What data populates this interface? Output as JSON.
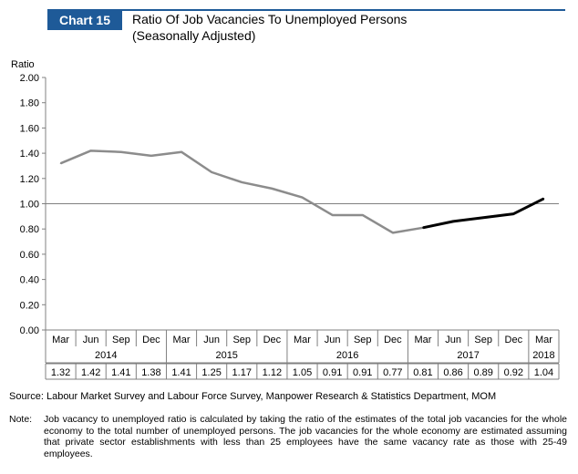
{
  "header": {
    "badge": "Chart 15",
    "title_line1": "Ratio Of Job Vacancies To Unemployed Persons",
    "title_line2": "(Seasonally Adjusted)"
  },
  "colors": {
    "brand": "#1e5a98",
    "series_main": "#8c8c8c",
    "series_highlight": "#000000",
    "reference_line": "#808080"
  },
  "chart_data": {
    "type": "line",
    "ylabel": "Ratio",
    "ylim": [
      0,
      2
    ],
    "yticks": [
      "0.00",
      "0.20",
      "0.40",
      "0.60",
      "0.80",
      "1.00",
      "1.20",
      "1.40",
      "1.60",
      "1.80",
      "2.00"
    ],
    "reference_line": 1.0,
    "categories": [
      "Mar",
      "Jun",
      "Sep",
      "Dec",
      "Mar",
      "Jun",
      "Sep",
      "Dec",
      "Mar",
      "Jun",
      "Sep",
      "Dec",
      "Mar",
      "Jun",
      "Sep",
      "Dec",
      "Mar"
    ],
    "years": [
      {
        "label": "2014",
        "span": 4
      },
      {
        "label": "2015",
        "span": 4
      },
      {
        "label": "2016",
        "span": 4
      },
      {
        "label": "2017",
        "span": 4
      },
      {
        "label": "2018",
        "span": 1
      }
    ],
    "values": [
      1.32,
      1.42,
      1.41,
      1.38,
      1.41,
      1.25,
      1.17,
      1.12,
      1.05,
      0.91,
      0.91,
      0.77,
      0.81,
      0.86,
      0.89,
      0.92,
      1.04
    ],
    "value_labels": [
      "1.32",
      "1.42",
      "1.41",
      "1.38",
      "1.41",
      "1.25",
      "1.17",
      "1.12",
      "1.05",
      "0.91",
      "0.91",
      "0.77",
      "0.81",
      "0.86",
      "0.89",
      "0.92",
      "1.04"
    ],
    "highlight_from_index": 12
  },
  "source": "Source: Labour Market Survey and Labour Force Survey, Manpower Research & Statistics Department, MOM",
  "note": {
    "label": "Note:",
    "text": "Job vacancy to unemployed ratio is calculated by taking the ratio of the estimates of the total job vacancies for the whole economy to the total number of unemployed persons. The job vacancies for the whole economy are estimated assuming that private sector establishments with less than 25 employees have the same vacancy rate as those with 25-49 employees."
  }
}
